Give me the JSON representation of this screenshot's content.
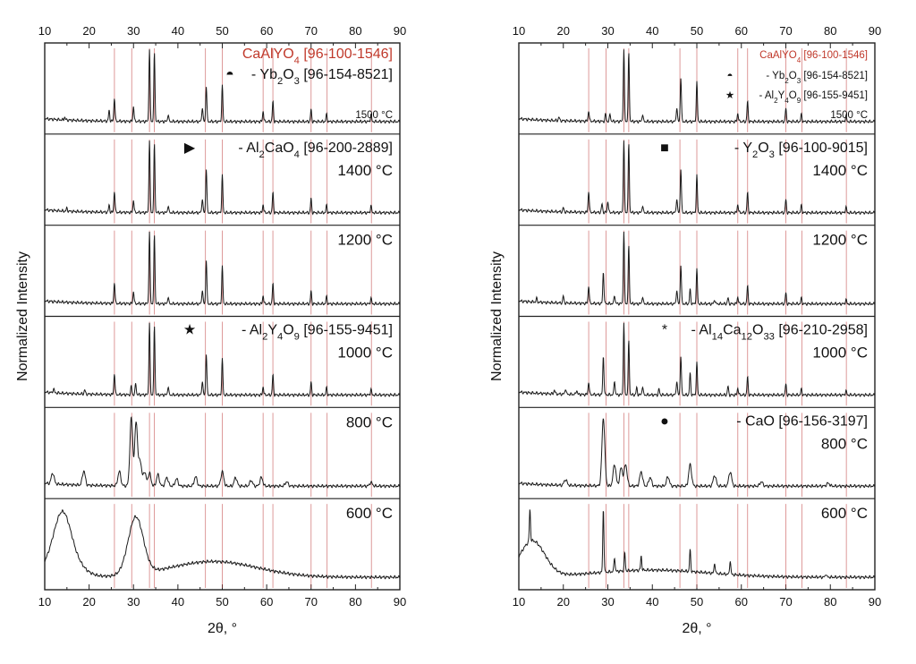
{
  "colors": {
    "reference": "#c0392b",
    "trace": "#1a1a1a",
    "axis": "#222222"
  },
  "chart_data": [
    {
      "type": "line",
      "title": "",
      "xlabel": "2θ, °",
      "ylabel": "Normalized Intensity",
      "xlim": [
        10,
        90
      ],
      "xticks": [
        "10",
        "20",
        "30",
        "40",
        "50",
        "60",
        "70",
        "80",
        "90"
      ],
      "grid": false,
      "reference_phase": "CaAlYO4 [96-100-1546]",
      "panels": [
        {
          "temperature": "1500 °C",
          "legend": [
            {
              "symbol": "◓",
              "text": "- Yb2O3 [96-154-8521]"
            }
          ],
          "peaks": [
            [
              14.5,
              0.04
            ],
            [
              24.5,
              0.15
            ],
            [
              25.7,
              0.33
            ],
            [
              30,
              0.22
            ],
            [
              33.6,
              1.0
            ],
            [
              34.7,
              0.95
            ],
            [
              37.8,
              0.1
            ],
            [
              45.5,
              0.2
            ],
            [
              46.4,
              0.5
            ],
            [
              50,
              0.5
            ],
            [
              59.2,
              0.15
            ],
            [
              61.4,
              0.28
            ],
            [
              70,
              0.17
            ],
            [
              73.5,
              0.1
            ],
            [
              83.5,
              0.1
            ]
          ]
        },
        {
          "temperature": "1400 °C",
          "legend": [
            {
              "symbol": "▶",
              "text": "- Al2CaO4 [96-200-2889]"
            }
          ],
          "peaks": [
            [
              15,
              0.04
            ],
            [
              24.5,
              0.1
            ],
            [
              25.7,
              0.3
            ],
            [
              30,
              0.18
            ],
            [
              33.6,
              1.0
            ],
            [
              34.7,
              0.95
            ],
            [
              37.8,
              0.1
            ],
            [
              45.5,
              0.2
            ],
            [
              46.4,
              0.62
            ],
            [
              50,
              0.52
            ],
            [
              59.2,
              0.12
            ],
            [
              61.4,
              0.28
            ],
            [
              70,
              0.2
            ],
            [
              73.5,
              0.1
            ],
            [
              83.5,
              0.1
            ]
          ]
        },
        {
          "temperature": "1200 °C",
          "legend": [],
          "peaks": [
            [
              25.7,
              0.3
            ],
            [
              30,
              0.18
            ],
            [
              33.6,
              1.0
            ],
            [
              34.7,
              0.95
            ],
            [
              37.8,
              0.1
            ],
            [
              45.5,
              0.2
            ],
            [
              46.4,
              0.62
            ],
            [
              50,
              0.52
            ],
            [
              59.2,
              0.12
            ],
            [
              61.4,
              0.28
            ],
            [
              70,
              0.18
            ],
            [
              73.5,
              0.1
            ],
            [
              83.5,
              0.08
            ]
          ]
        },
        {
          "temperature": "1000 °C",
          "legend": [
            {
              "symbol": "★",
              "text": "- Al2Y4O9 [96-155-9451]"
            }
          ],
          "peaks": [
            [
              12,
              0.06
            ],
            [
              19,
              0.06
            ],
            [
              25.7,
              0.3
            ],
            [
              29.5,
              0.12
            ],
            [
              30.5,
              0.16
            ],
            [
              33.6,
              1.0
            ],
            [
              34.7,
              0.95
            ],
            [
              37.8,
              0.12
            ],
            [
              45.5,
              0.2
            ],
            [
              46.4,
              0.58
            ],
            [
              50,
              0.5
            ],
            [
              59.2,
              0.12
            ],
            [
              61.4,
              0.28
            ],
            [
              70,
              0.18
            ],
            [
              73.5,
              0.1
            ],
            [
              83.5,
              0.08
            ]
          ]
        },
        {
          "temperature": "800 °C",
          "legend": [],
          "peaks": [
            [
              11.8,
              0.15
            ],
            [
              18.8,
              0.2
            ],
            [
              26.8,
              0.2
            ],
            [
              29.5,
              0.95
            ],
            [
              30.6,
              0.9
            ],
            [
              31.5,
              0.35
            ],
            [
              32.5,
              0.2
            ],
            [
              33.6,
              0.18
            ],
            [
              35.5,
              0.16
            ],
            [
              37.5,
              0.12
            ],
            [
              39.7,
              0.1
            ],
            [
              44,
              0.13
            ],
            [
              50,
              0.2
            ],
            [
              53,
              0.12
            ],
            [
              56.5,
              0.08
            ],
            [
              58.8,
              0.12
            ],
            [
              64.5,
              0.06
            ],
            [
              83.5,
              0.05
            ]
          ]
        },
        {
          "temperature": "600 °C",
          "legend": [],
          "peaks": [
            [
              14,
              0.5
            ],
            [
              30.5,
              0.8
            ]
          ]
        }
      ]
    },
    {
      "type": "line",
      "title": "",
      "xlabel": "2θ, °",
      "ylabel": "Normalized Intensity",
      "xlim": [
        10,
        90
      ],
      "xticks": [
        "10",
        "20",
        "30",
        "40",
        "50",
        "60",
        "70",
        "80",
        "90"
      ],
      "grid": false,
      "reference_phase": "CaAlYO4 [96-100-1546]",
      "panels": [
        {
          "temperature": "1500 °C",
          "legend": [
            {
              "symbol": "◓",
              "text": "- Yb2O3 [96-154-8521]"
            },
            {
              "symbol": "★",
              "text": "- Al2Y4O9 [96-155-9451]"
            }
          ],
          "peaks": [
            [
              19,
              0.05
            ],
            [
              25.7,
              0.15
            ],
            [
              29.5,
              0.1
            ],
            [
              30.5,
              0.1
            ],
            [
              33.6,
              1.0
            ],
            [
              34.7,
              0.95
            ],
            [
              37.8,
              0.1
            ],
            [
              45.5,
              0.2
            ],
            [
              46.4,
              0.62
            ],
            [
              50,
              0.55
            ],
            [
              59.2,
              0.12
            ],
            [
              61.4,
              0.28
            ],
            [
              70,
              0.18
            ],
            [
              73.5,
              0.1
            ],
            [
              83.5,
              0.08
            ]
          ]
        },
        {
          "temperature": "1400 °C",
          "legend": [
            {
              "symbol": "■",
              "text": "- Y2O3 [96-100-9015]"
            }
          ],
          "peaks": [
            [
              20,
              0.06
            ],
            [
              25.7,
              0.3
            ],
            [
              28.7,
              0.12
            ],
            [
              30,
              0.16
            ],
            [
              33.6,
              1.0
            ],
            [
              34.7,
              0.95
            ],
            [
              37.8,
              0.1
            ],
            [
              45.5,
              0.2
            ],
            [
              46.4,
              0.62
            ],
            [
              50,
              0.52
            ],
            [
              59.2,
              0.12
            ],
            [
              61.4,
              0.28
            ],
            [
              70,
              0.18
            ],
            [
              73.5,
              0.1
            ],
            [
              83.5,
              0.08
            ]
          ]
        },
        {
          "temperature": "1200 °C",
          "legend": [],
          "peaks": [
            [
              14,
              0.05
            ],
            [
              20,
              0.1
            ],
            [
              25.7,
              0.25
            ],
            [
              29,
              0.45
            ],
            [
              31.5,
              0.12
            ],
            [
              33.6,
              1.0
            ],
            [
              34.7,
              0.8
            ],
            [
              37.8,
              0.1
            ],
            [
              45.5,
              0.2
            ],
            [
              46.4,
              0.55
            ],
            [
              48.5,
              0.2
            ],
            [
              50,
              0.48
            ],
            [
              54,
              0.06
            ],
            [
              57,
              0.08
            ],
            [
              59.2,
              0.1
            ],
            [
              61.4,
              0.25
            ],
            [
              70,
              0.15
            ],
            [
              73.5,
              0.08
            ],
            [
              83.5,
              0.06
            ]
          ]
        },
        {
          "temperature": "1000 °C",
          "legend": [
            {
              "symbol": "*",
              "text": "- Al14Ca12O33 [96-210-2958]"
            }
          ],
          "peaks": [
            [
              18,
              0.06
            ],
            [
              20.5,
              0.08
            ],
            [
              23,
              0.06
            ],
            [
              25.7,
              0.18
            ],
            [
              29,
              0.55
            ],
            [
              31.5,
              0.2
            ],
            [
              33.6,
              1.0
            ],
            [
              34.7,
              0.75
            ],
            [
              36.5,
              0.1
            ],
            [
              37.8,
              0.12
            ],
            [
              41.5,
              0.08
            ],
            [
              45.5,
              0.2
            ],
            [
              46.4,
              0.55
            ],
            [
              48.5,
              0.3
            ],
            [
              50,
              0.45
            ],
            [
              57,
              0.12
            ],
            [
              59.2,
              0.1
            ],
            [
              61.4,
              0.25
            ],
            [
              70,
              0.15
            ],
            [
              73.5,
              0.08
            ],
            [
              83.5,
              0.06
            ]
          ]
        },
        {
          "temperature": "800 °C",
          "legend": [
            {
              "symbol": "●",
              "text": "- CaO [96-156-3197]"
            }
          ],
          "peaks": [
            [
              20.5,
              0.08
            ],
            [
              29,
              0.95
            ],
            [
              31.5,
              0.3
            ],
            [
              33,
              0.25
            ],
            [
              34,
              0.3
            ],
            [
              37.5,
              0.2
            ],
            [
              39.5,
              0.12
            ],
            [
              43.5,
              0.13
            ],
            [
              48.5,
              0.3
            ],
            [
              54,
              0.15
            ],
            [
              57.5,
              0.2
            ],
            [
              64.5,
              0.06
            ],
            [
              79.5,
              0.04
            ]
          ]
        },
        {
          "temperature": "600 °C",
          "legend": [],
          "peaks": [
            [
              12.5,
              0.45
            ],
            [
              29,
              0.9
            ],
            [
              31.5,
              0.2
            ],
            [
              33.8,
              0.25
            ],
            [
              37.5,
              0.2
            ],
            [
              48.5,
              0.3
            ],
            [
              54,
              0.15
            ],
            [
              57.5,
              0.2
            ],
            [
              79,
              0.05
            ]
          ]
        }
      ]
    }
  ]
}
